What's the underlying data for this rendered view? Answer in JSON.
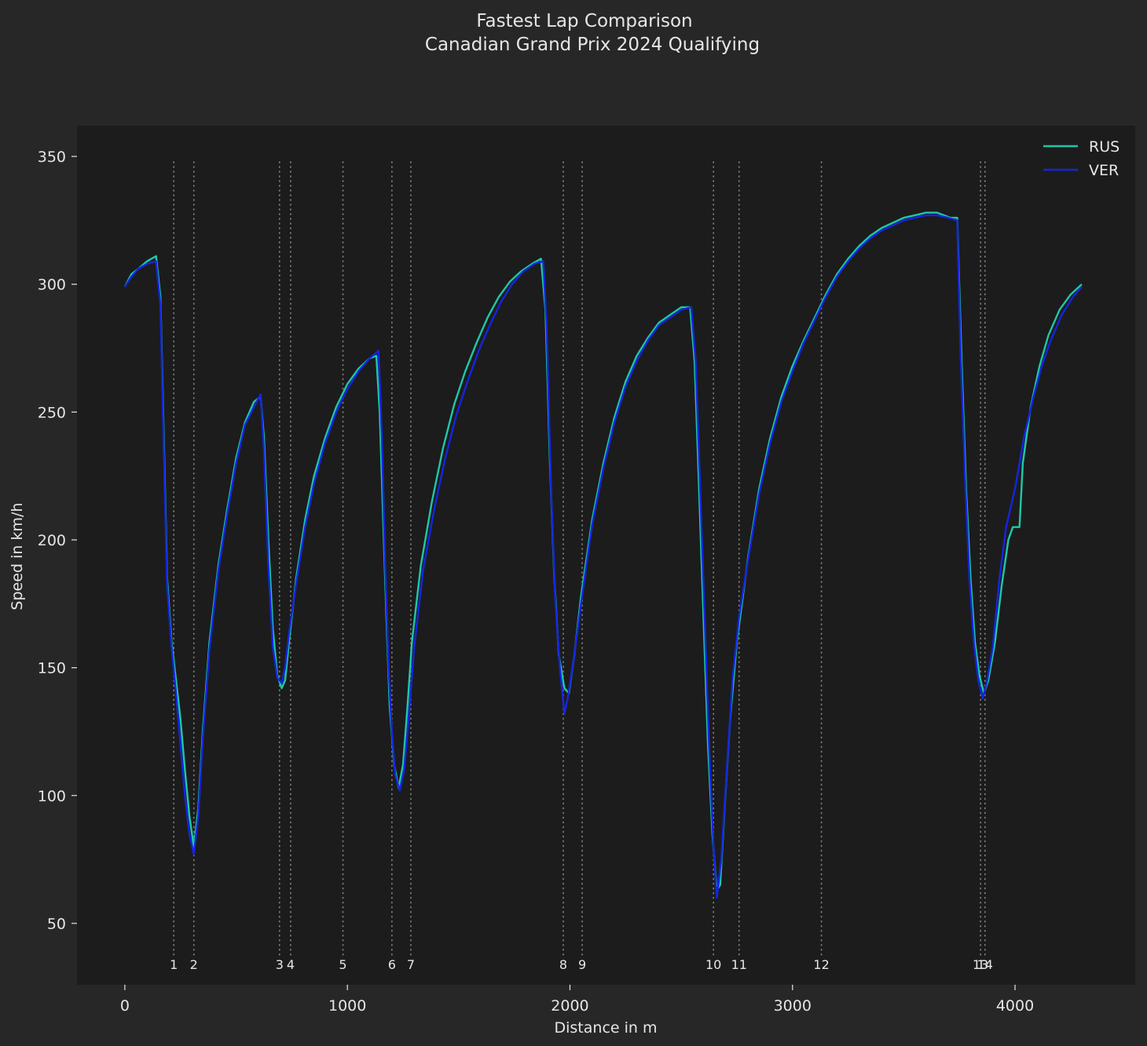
{
  "chart_data": {
    "type": "line",
    "title": "Fastest Lap Comparison",
    "subtitle": "Canadian Grand Prix 2024 Qualifying",
    "xlabel": "Distance in m",
    "ylabel": "Speed in km/h",
    "xlim": [
      -215,
      4540
    ],
    "ylim": [
      26,
      362
    ],
    "xticks": [
      0,
      1000,
      2000,
      3000,
      4000
    ],
    "yticks": [
      50,
      100,
      150,
      200,
      250,
      300,
      350
    ],
    "grid": false,
    "legend_position": "top-right",
    "background": "#272727",
    "plot_background": "#1c1c1c",
    "text_color": "#e6e6e6",
    "corner_line_color": "#8c8c8c",
    "corners": [
      {
        "label": "1",
        "x": 220
      },
      {
        "label": "2",
        "x": 310
      },
      {
        "label": "3",
        "x": 695
      },
      {
        "label": "4",
        "x": 745
      },
      {
        "label": "5",
        "x": 980
      },
      {
        "label": "6",
        "x": 1200
      },
      {
        "label": "7",
        "x": 1285
      },
      {
        "label": "8",
        "x": 1970
      },
      {
        "label": "9",
        "x": 2055
      },
      {
        "label": "10",
        "x": 2645
      },
      {
        "label": "11",
        "x": 2760
      },
      {
        "label": "12",
        "x": 3130
      },
      {
        "label": "13",
        "x": 3845
      },
      {
        "label": "14",
        "x": 3865
      }
    ],
    "series": [
      {
        "name": "RUS",
        "color": "#1ec8a8",
        "points": [
          [
            0,
            299
          ],
          [
            30,
            304
          ],
          [
            60,
            306
          ],
          [
            100,
            309
          ],
          [
            140,
            311
          ],
          [
            160,
            295
          ],
          [
            175,
            240
          ],
          [
            190,
            185
          ],
          [
            210,
            160
          ],
          [
            230,
            145
          ],
          [
            250,
            130
          ],
          [
            270,
            110
          ],
          [
            290,
            92
          ],
          [
            310,
            80
          ],
          [
            330,
            95
          ],
          [
            350,
            125
          ],
          [
            380,
            160
          ],
          [
            420,
            190
          ],
          [
            460,
            212
          ],
          [
            500,
            232
          ],
          [
            540,
            246
          ],
          [
            580,
            254
          ],
          [
            610,
            256
          ],
          [
            625,
            240
          ],
          [
            645,
            200
          ],
          [
            665,
            165
          ],
          [
            685,
            147
          ],
          [
            705,
            142
          ],
          [
            720,
            145
          ],
          [
            740,
            162
          ],
          [
            770,
            185
          ],
          [
            810,
            208
          ],
          [
            850,
            225
          ],
          [
            900,
            240
          ],
          [
            950,
            252
          ],
          [
            1000,
            261
          ],
          [
            1050,
            267
          ],
          [
            1100,
            271
          ],
          [
            1130,
            272
          ],
          [
            1145,
            250
          ],
          [
            1160,
            210
          ],
          [
            1175,
            170
          ],
          [
            1190,
            135
          ],
          [
            1210,
            112
          ],
          [
            1230,
            103
          ],
          [
            1250,
            112
          ],
          [
            1270,
            135
          ],
          [
            1290,
            160
          ],
          [
            1330,
            190
          ],
          [
            1380,
            215
          ],
          [
            1430,
            236
          ],
          [
            1480,
            253
          ],
          [
            1530,
            266
          ],
          [
            1580,
            277
          ],
          [
            1630,
            287
          ],
          [
            1680,
            295
          ],
          [
            1730,
            301
          ],
          [
            1780,
            305
          ],
          [
            1830,
            308
          ],
          [
            1870,
            310
          ],
          [
            1890,
            290
          ],
          [
            1910,
            230
          ],
          [
            1930,
            185
          ],
          [
            1950,
            155
          ],
          [
            1975,
            142
          ],
          [
            1995,
            140
          ],
          [
            2020,
            155
          ],
          [
            2050,
            178
          ],
          [
            2100,
            208
          ],
          [
            2150,
            230
          ],
          [
            2200,
            248
          ],
          [
            2250,
            262
          ],
          [
            2300,
            272
          ],
          [
            2350,
            279
          ],
          [
            2400,
            285
          ],
          [
            2450,
            288
          ],
          [
            2500,
            291
          ],
          [
            2540,
            291
          ],
          [
            2560,
            270
          ],
          [
            2580,
            220
          ],
          [
            2600,
            170
          ],
          [
            2620,
            120
          ],
          [
            2640,
            85
          ],
          [
            2660,
            63
          ],
          [
            2675,
            65
          ],
          [
            2695,
            95
          ],
          [
            2720,
            130
          ],
          [
            2750,
            160
          ],
          [
            2800,
            193
          ],
          [
            2850,
            220
          ],
          [
            2900,
            240
          ],
          [
            2950,
            256
          ],
          [
            3000,
            268
          ],
          [
            3050,
            278
          ],
          [
            3100,
            287
          ],
          [
            3150,
            296
          ],
          [
            3200,
            304
          ],
          [
            3250,
            310
          ],
          [
            3300,
            315
          ],
          [
            3350,
            319
          ],
          [
            3400,
            322
          ],
          [
            3450,
            324
          ],
          [
            3500,
            326
          ],
          [
            3550,
            327
          ],
          [
            3600,
            328
          ],
          [
            3650,
            328
          ],
          [
            3680,
            327
          ],
          [
            3710,
            326
          ],
          [
            3740,
            326
          ],
          [
            3760,
            270
          ],
          [
            3780,
            220
          ],
          [
            3800,
            185
          ],
          [
            3820,
            160
          ],
          [
            3840,
            147
          ],
          [
            3860,
            140
          ],
          [
            3880,
            145
          ],
          [
            3910,
            160
          ],
          [
            3940,
            182
          ],
          [
            3970,
            200
          ],
          [
            3990,
            205
          ],
          [
            4020,
            205
          ],
          [
            4035,
            230
          ],
          [
            4070,
            252
          ],
          [
            4110,
            268
          ],
          [
            4150,
            280
          ],
          [
            4200,
            290
          ],
          [
            4250,
            296
          ],
          [
            4300,
            300
          ]
        ]
      },
      {
        "name": "VER",
        "color": "#1525e0",
        "points": [
          [
            0,
            299
          ],
          [
            30,
            303
          ],
          [
            60,
            306
          ],
          [
            100,
            308
          ],
          [
            140,
            309
          ],
          [
            160,
            292
          ],
          [
            175,
            235
          ],
          [
            190,
            182
          ],
          [
            210,
            158
          ],
          [
            230,
            140
          ],
          [
            250,
            120
          ],
          [
            270,
            100
          ],
          [
            290,
            85
          ],
          [
            310,
            77
          ],
          [
            330,
            92
          ],
          [
            350,
            122
          ],
          [
            380,
            157
          ],
          [
            420,
            188
          ],
          [
            460,
            210
          ],
          [
            500,
            230
          ],
          [
            540,
            245
          ],
          [
            580,
            252
          ],
          [
            610,
            257
          ],
          [
            625,
            235
          ],
          [
            645,
            190
          ],
          [
            665,
            158
          ],
          [
            685,
            146
          ],
          [
            705,
            144
          ],
          [
            720,
            150
          ],
          [
            740,
            165
          ],
          [
            770,
            183
          ],
          [
            810,
            205
          ],
          [
            850,
            222
          ],
          [
            900,
            238
          ],
          [
            950,
            250
          ],
          [
            1000,
            259
          ],
          [
            1050,
            266
          ],
          [
            1100,
            271
          ],
          [
            1140,
            274
          ],
          [
            1155,
            240
          ],
          [
            1170,
            190
          ],
          [
            1185,
            150
          ],
          [
            1200,
            125
          ],
          [
            1215,
            108
          ],
          [
            1235,
            102
          ],
          [
            1255,
            110
          ],
          [
            1275,
            130
          ],
          [
            1300,
            158
          ],
          [
            1340,
            188
          ],
          [
            1390,
            212
          ],
          [
            1440,
            232
          ],
          [
            1490,
            249
          ],
          [
            1540,
            262
          ],
          [
            1590,
            274
          ],
          [
            1640,
            284
          ],
          [
            1690,
            293
          ],
          [
            1740,
            300
          ],
          [
            1790,
            305
          ],
          [
            1840,
            308
          ],
          [
            1880,
            309
          ],
          [
            1895,
            285
          ],
          [
            1915,
            220
          ],
          [
            1935,
            175
          ],
          [
            1955,
            150
          ],
          [
            1975,
            132
          ],
          [
            1990,
            138
          ],
          [
            2015,
            152
          ],
          [
            2050,
            175
          ],
          [
            2100,
            206
          ],
          [
            2150,
            228
          ],
          [
            2200,
            246
          ],
          [
            2250,
            260
          ],
          [
            2300,
            270
          ],
          [
            2350,
            278
          ],
          [
            2400,
            284
          ],
          [
            2450,
            287
          ],
          [
            2500,
            290
          ],
          [
            2545,
            291
          ],
          [
            2565,
            270
          ],
          [
            2585,
            220
          ],
          [
            2605,
            170
          ],
          [
            2625,
            120
          ],
          [
            2645,
            80
          ],
          [
            2660,
            60
          ],
          [
            2680,
            75
          ],
          [
            2705,
            110
          ],
          [
            2730,
            145
          ],
          [
            2760,
            170
          ],
          [
            2800,
            192
          ],
          [
            2850,
            218
          ],
          [
            2900,
            238
          ],
          [
            2950,
            254
          ],
          [
            3000,
            266
          ],
          [
            3050,
            277
          ],
          [
            3100,
            286
          ],
          [
            3150,
            295
          ],
          [
            3200,
            303
          ],
          [
            3250,
            309
          ],
          [
            3300,
            314
          ],
          [
            3350,
            318
          ],
          [
            3400,
            321
          ],
          [
            3450,
            323
          ],
          [
            3500,
            325
          ],
          [
            3550,
            326
          ],
          [
            3600,
            327
          ],
          [
            3650,
            327
          ],
          [
            3700,
            326
          ],
          [
            3740,
            325
          ],
          [
            3755,
            275
          ],
          [
            3775,
            225
          ],
          [
            3795,
            185
          ],
          [
            3815,
            160
          ],
          [
            3835,
            145
          ],
          [
            3855,
            138
          ],
          [
            3875,
            145
          ],
          [
            3900,
            158
          ],
          [
            3930,
            185
          ],
          [
            3960,
            205
          ],
          [
            4000,
            220
          ],
          [
            4040,
            240
          ],
          [
            4080,
            255
          ],
          [
            4120,
            268
          ],
          [
            4160,
            278
          ],
          [
            4210,
            288
          ],
          [
            4260,
            295
          ],
          [
            4300,
            299
          ]
        ]
      }
    ]
  }
}
